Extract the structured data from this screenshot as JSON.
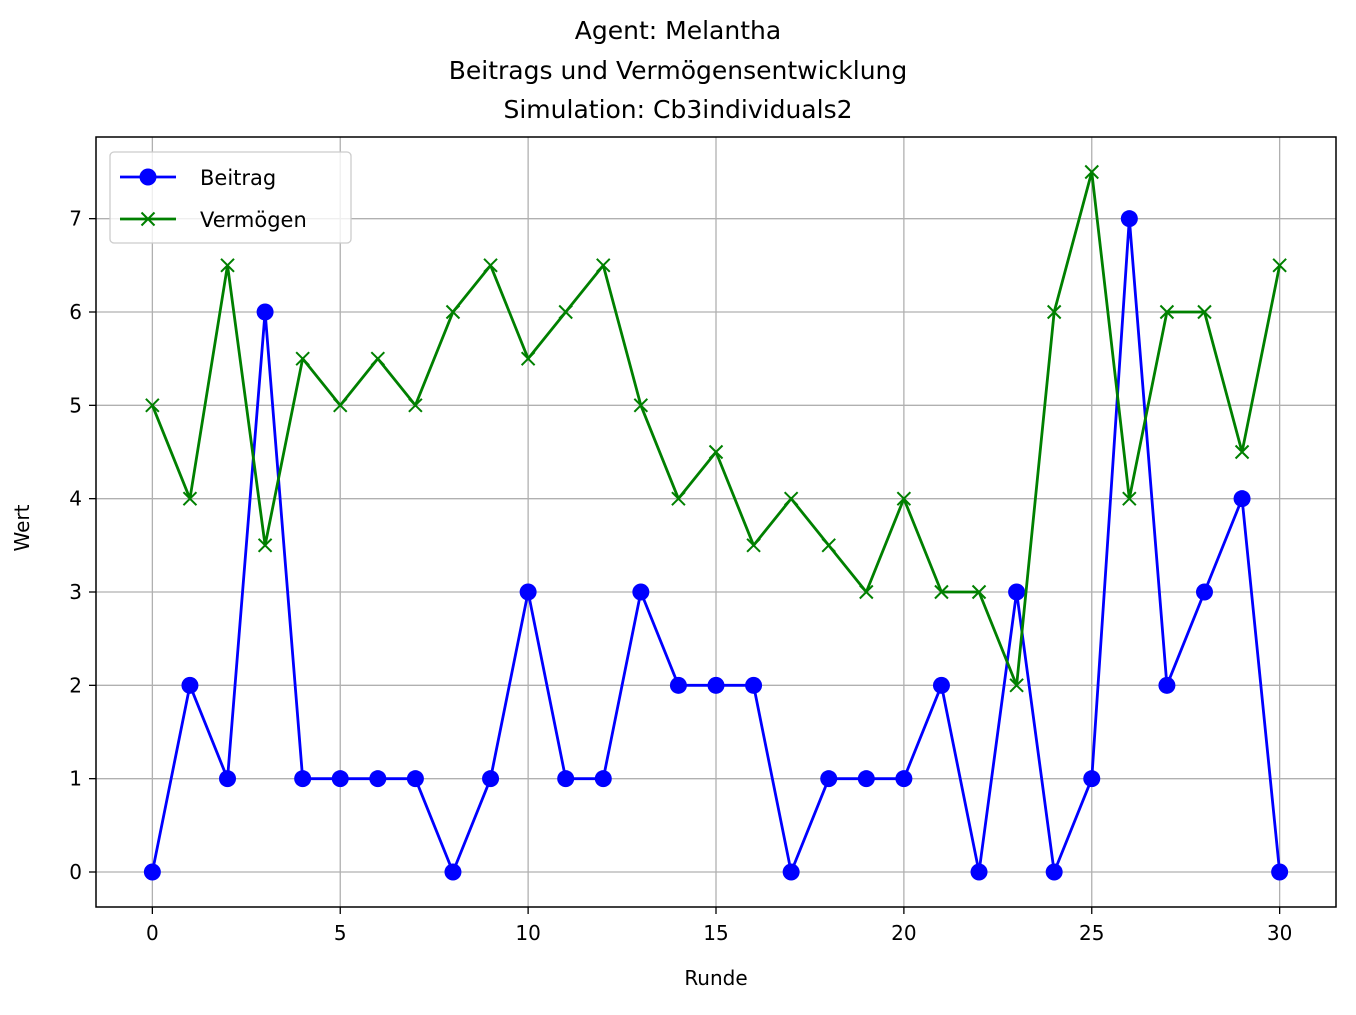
{
  "chart_data": {
    "type": "line",
    "title": [
      "Agent: Melantha",
      "Beitrags und Vermögensentwicklung",
      "Simulation: Cb3individuals2"
    ],
    "xlabel": "Runde",
    "ylabel": "Wert",
    "xlim": [
      -1.5,
      31.5
    ],
    "ylim": [
      -0.375,
      7.875
    ],
    "xticks": [
      0,
      5,
      10,
      15,
      20,
      25,
      30
    ],
    "yticks": [
      0,
      1,
      2,
      3,
      4,
      5,
      6,
      7
    ],
    "grid": true,
    "legend_position": "top-left",
    "x": [
      0,
      1,
      2,
      3,
      4,
      5,
      6,
      7,
      8,
      9,
      10,
      11,
      12,
      13,
      14,
      15,
      16,
      17,
      18,
      19,
      20,
      21,
      22,
      23,
      24,
      25,
      26,
      27,
      28,
      29,
      30
    ],
    "series": [
      {
        "name": "Beitrag",
        "color": "#0000ff",
        "marker": "circle",
        "values": [
          0,
          2,
          1,
          6,
          1,
          1,
          1,
          1,
          0,
          1,
          3,
          1,
          1,
          3,
          2,
          2,
          2,
          0,
          1,
          1,
          1,
          2,
          0,
          3,
          0,
          1,
          7,
          2,
          3,
          4,
          0
        ]
      },
      {
        "name": "Vermögen",
        "color": "#008000",
        "marker": "x",
        "values": [
          5,
          4,
          6.5,
          3.5,
          5.5,
          5,
          5.5,
          5,
          6,
          6.5,
          5.5,
          6,
          6.5,
          5,
          4,
          4.5,
          3.5,
          4,
          3.5,
          3,
          4,
          3,
          3,
          2,
          6,
          7.5,
          4,
          6,
          6,
          4.5,
          6.5
        ]
      }
    ]
  }
}
